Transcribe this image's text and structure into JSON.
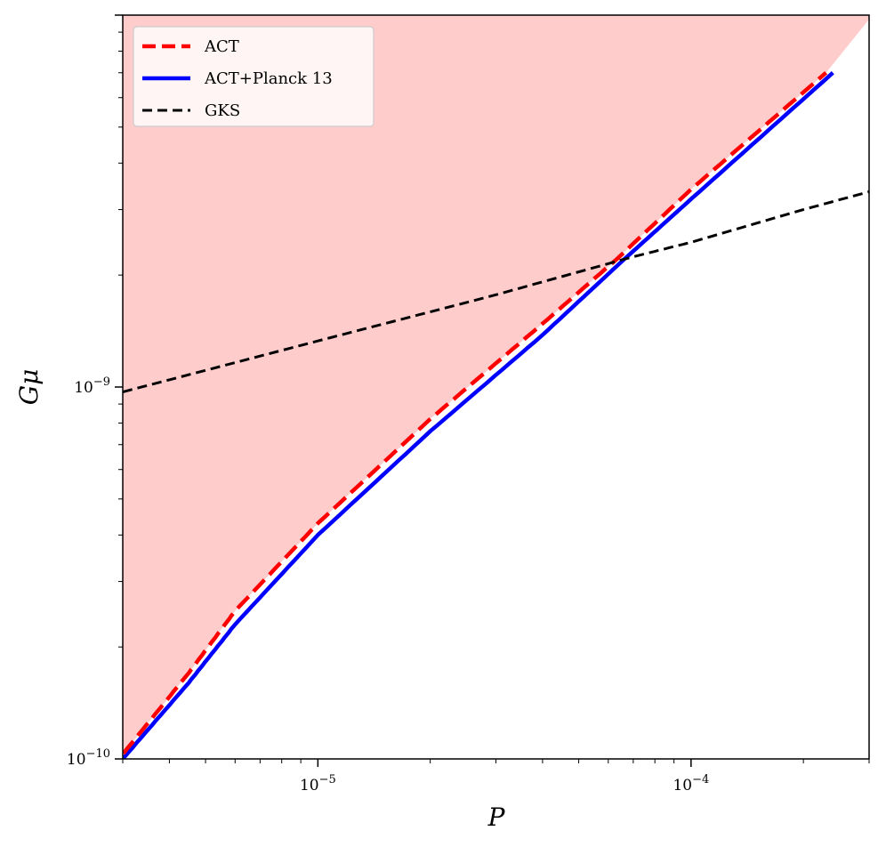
{
  "chart_data": {
    "type": "line",
    "title": "",
    "xlabel": "P",
    "ylabel": "Gμ",
    "xscale": "log",
    "yscale": "log",
    "xlim": [
      3e-06,
      0.0003
    ],
    "ylim": [
      1e-10,
      1e-08
    ],
    "grid": false,
    "legend_position": "top-left",
    "x_ticks": [
      {
        "value": 1e-05,
        "base": "10",
        "exp": "−5"
      },
      {
        "value": 0.0001,
        "base": "10",
        "exp": "−4"
      }
    ],
    "y_ticks": [
      {
        "value": 1e-10,
        "base": "10",
        "exp": "−10"
      },
      {
        "value": 1e-09,
        "base": "10",
        "exp": "−9"
      }
    ],
    "shaded_region": {
      "between_series": "ACT",
      "side": "above",
      "color": "#ffcccc"
    },
    "series": [
      {
        "name": "ACT",
        "color": "#ff0000",
        "style": "dashed",
        "x": [
          3e-06,
          4.5e-06,
          6e-06,
          1e-05,
          2e-05,
          4e-05,
          6.3e-05,
          0.0001,
          0.00023
        ],
        "y": [
          1.03e-10,
          1.7e-10,
          2.5e-10,
          4.3e-10,
          8.2e-10,
          1.48e-09,
          2.2e-09,
          3.4e-09,
          7e-09
        ]
      },
      {
        "name": "ACT+Planck 13",
        "color": "#0000ff",
        "style": "solid",
        "x": [
          3e-06,
          4.5e-06,
          6e-06,
          1e-05,
          2e-05,
          4e-05,
          6.6e-05,
          0.0001,
          0.00024
        ],
        "y": [
          1e-10,
          1.6e-10,
          2.3e-10,
          4e-10,
          7.6e-10,
          1.38e-09,
          2.2e-09,
          3.2e-09,
          7e-09
        ]
      },
      {
        "name": "GKS",
        "color": "#000000",
        "style": "dashed",
        "x": [
          3e-06,
          1e-05,
          3e-05,
          7e-05,
          0.0001,
          0.0002,
          0.0003
        ],
        "y": [
          9.7e-10,
          1.33e-09,
          1.77e-09,
          2.24e-09,
          2.45e-09,
          3e-09,
          3.35e-09
        ]
      }
    ]
  }
}
